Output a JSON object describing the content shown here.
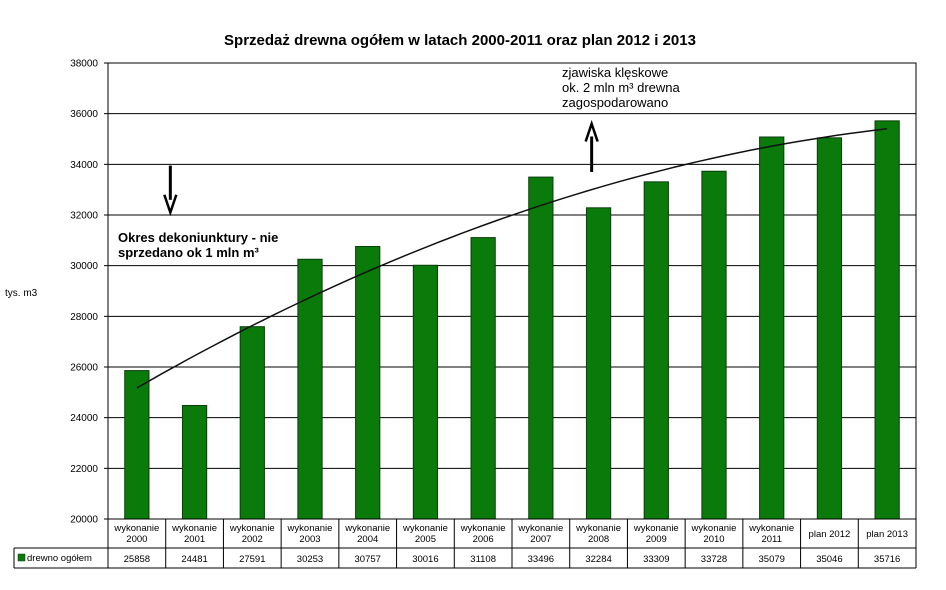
{
  "chart_data": {
    "type": "bar",
    "title": "Sprzedaż drewna ogółem w latach 2000-2011 oraz plan 2012 i 2013",
    "ylabel": "tys. m3",
    "xlabel": "",
    "ylim": [
      20000,
      38000
    ],
    "yticks": [
      20000,
      22000,
      24000,
      26000,
      28000,
      30000,
      32000,
      34000,
      36000,
      38000
    ],
    "grid": true,
    "categories": [
      [
        "wykonanie",
        "2000"
      ],
      [
        "wykonanie",
        "2001"
      ],
      [
        "wykonanie",
        "2002"
      ],
      [
        "wykonanie",
        "2003"
      ],
      [
        "wykonanie",
        "2004"
      ],
      [
        "wykonanie",
        "2005"
      ],
      [
        "wykonanie",
        "2006"
      ],
      [
        "wykonanie",
        "2007"
      ],
      [
        "wykonanie",
        "2008"
      ],
      [
        "wykonanie",
        "2009"
      ],
      [
        "wykonanie",
        "2010"
      ],
      [
        "wykonanie",
        "2011"
      ],
      [
        "plan 2012"
      ],
      [
        "plan 2013"
      ]
    ],
    "series": [
      {
        "name": "drewno ogółem",
        "color": "#0a7a0a",
        "values": [
          25858,
          24481,
          27591,
          30253,
          30757,
          30016,
          31108,
          33496,
          32284,
          33309,
          33728,
          35079,
          35046,
          35716
        ]
      }
    ],
    "data_table": true,
    "annotations": [
      {
        "lines": [
          "Okres dekoniunktury - nie",
          "sprzedano ok 1 mln m³"
        ],
        "arrow": "down"
      },
      {
        "lines": [
          "zjawiska klęskowe",
          "ok. 2 mln m³ drewna",
          "zagospodarowano"
        ],
        "arrow": "up"
      }
    ],
    "trendline": "polynomial"
  }
}
